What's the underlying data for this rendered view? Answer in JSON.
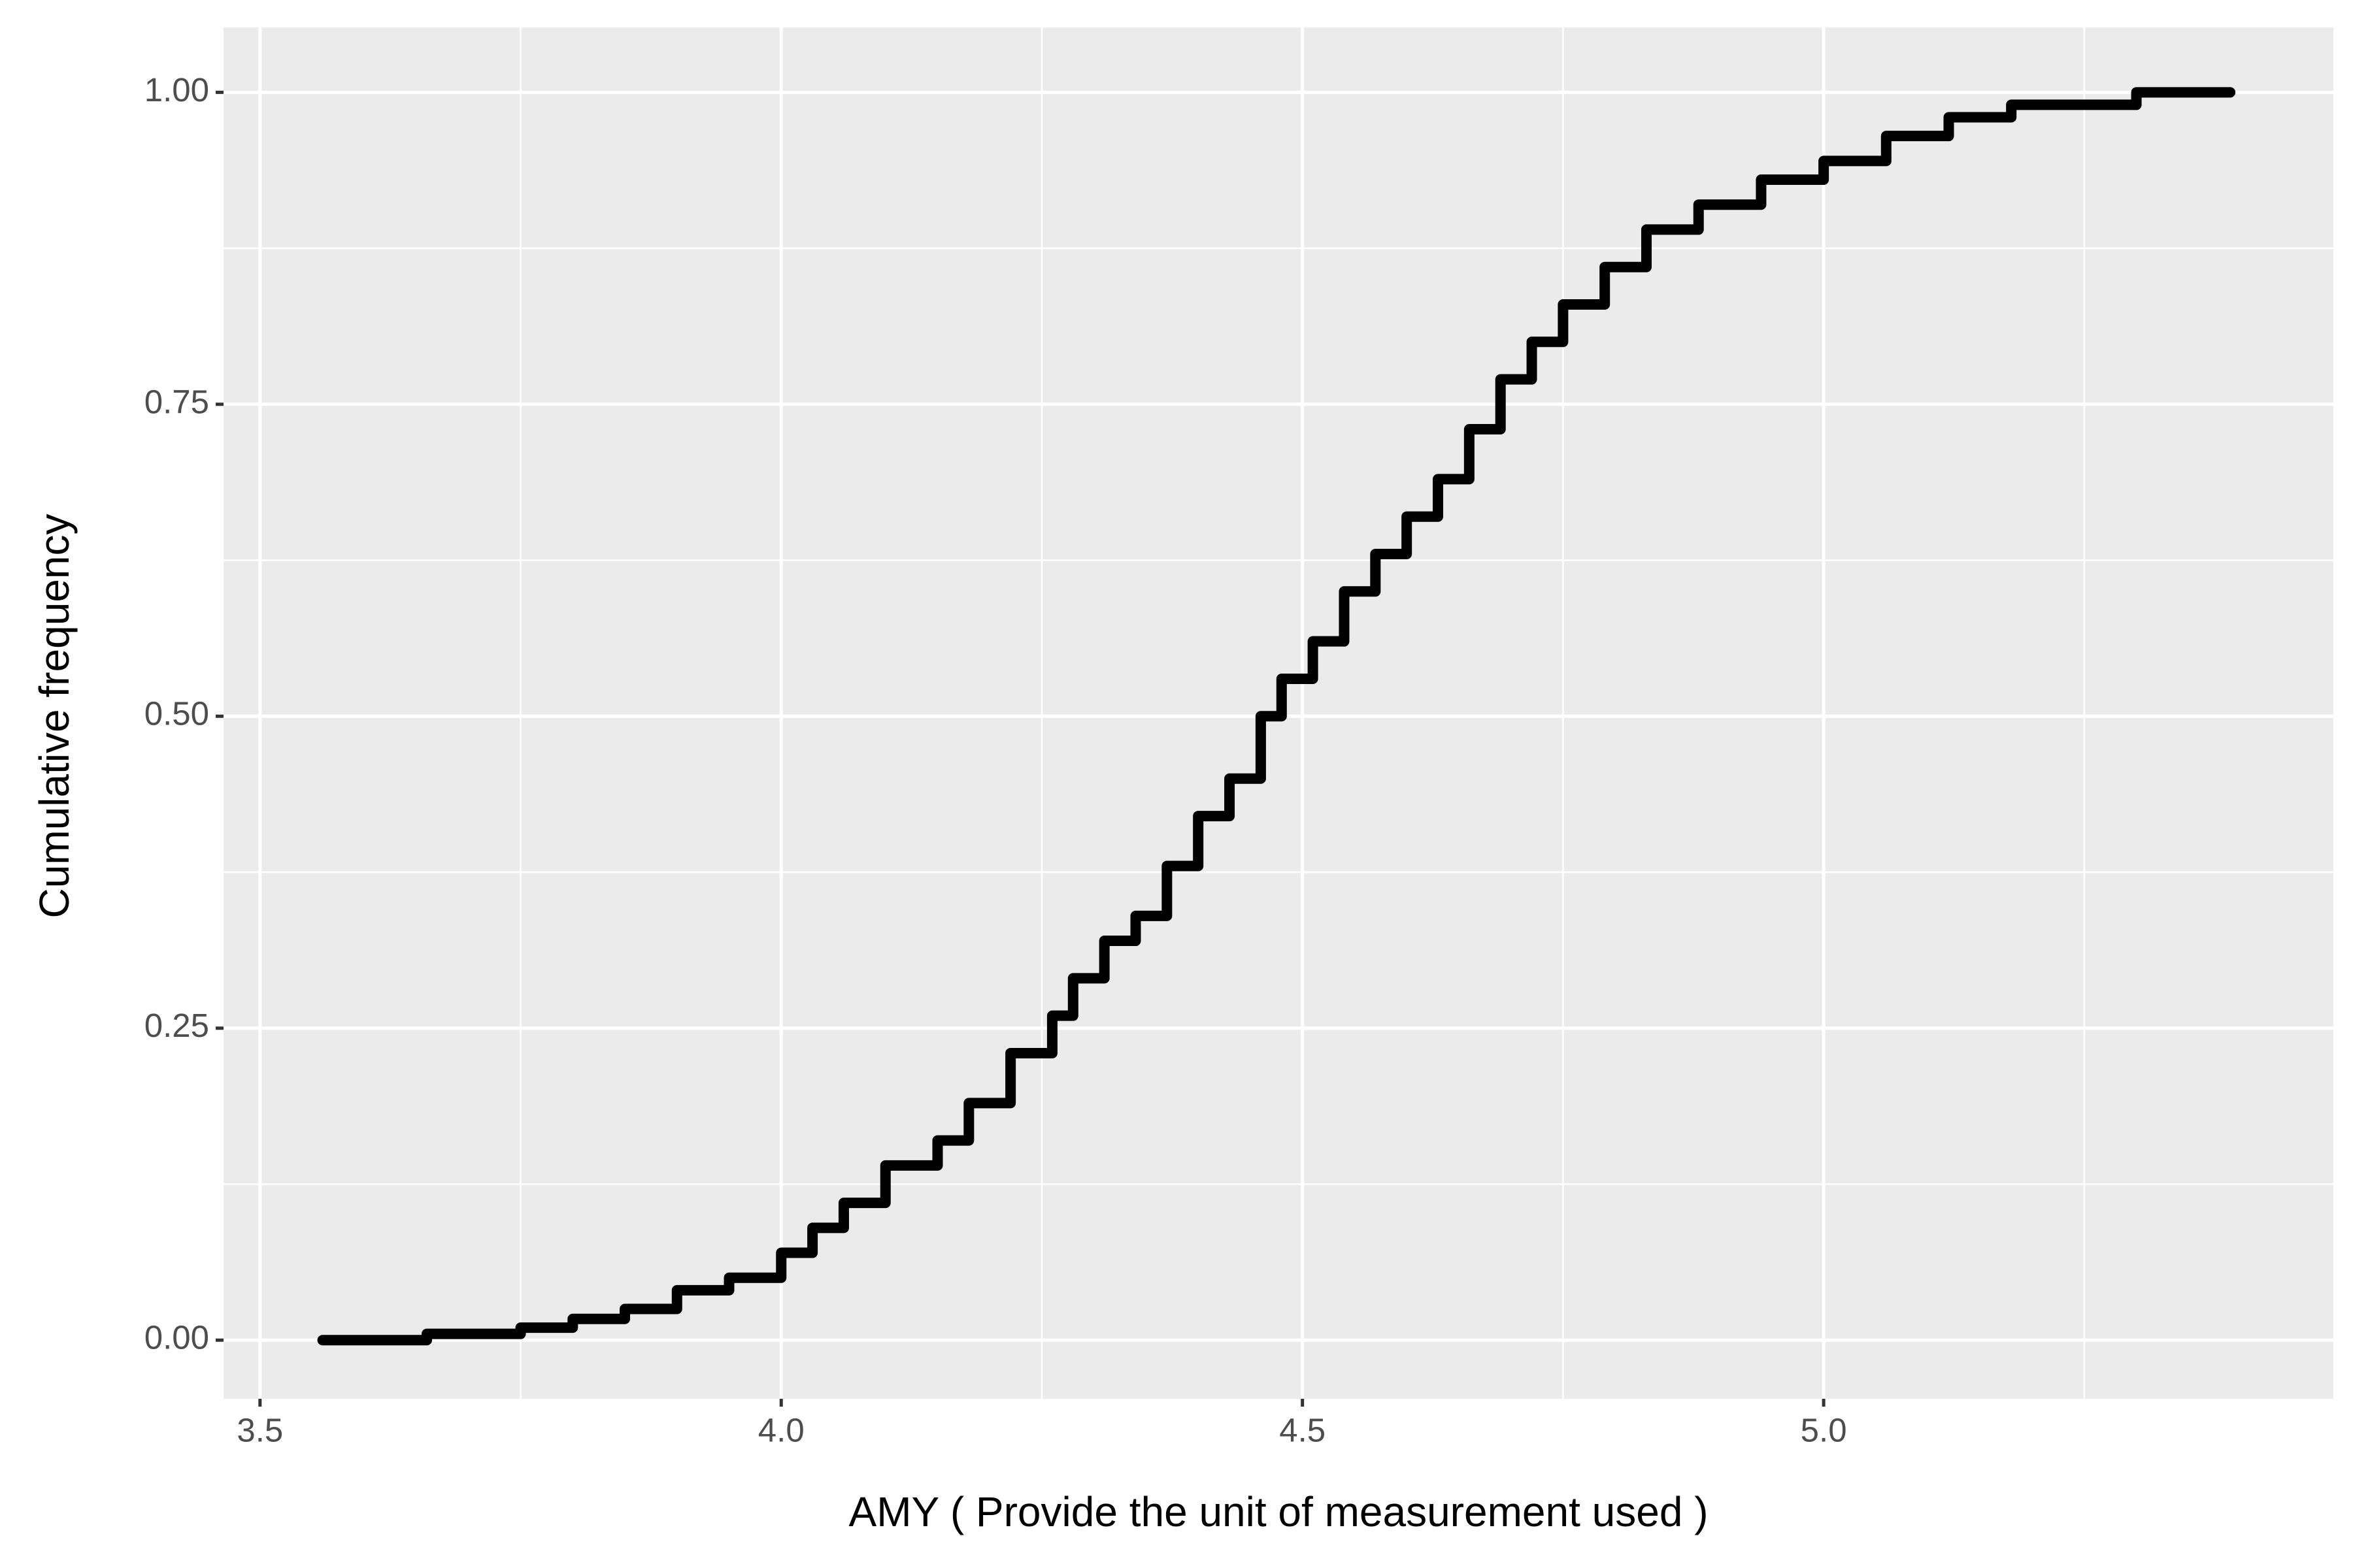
{
  "chart_data": {
    "type": "step",
    "x_label": "AMY ( Provide the unit of measurement used )",
    "y_label": "Cumulative frequency",
    "x": [
      3.56,
      3.66,
      3.75,
      3.8,
      3.85,
      3.9,
      3.95,
      4.0,
      4.03,
      4.06,
      4.1,
      4.15,
      4.18,
      4.22,
      4.26,
      4.28,
      4.31,
      4.34,
      4.37,
      4.4,
      4.43,
      4.46,
      4.48,
      4.51,
      4.54,
      4.57,
      4.6,
      4.63,
      4.66,
      4.69,
      4.72,
      4.75,
      4.79,
      4.83,
      4.88,
      4.94,
      5.0,
      5.06,
      5.12,
      5.18,
      5.3,
      5.39
    ],
    "values": [
      0.0,
      0.005,
      0.01,
      0.017,
      0.025,
      0.04,
      0.05,
      0.07,
      0.09,
      0.11,
      0.14,
      0.16,
      0.19,
      0.23,
      0.26,
      0.29,
      0.32,
      0.34,
      0.38,
      0.42,
      0.45,
      0.5,
      0.53,
      0.56,
      0.6,
      0.63,
      0.66,
      0.69,
      0.73,
      0.77,
      0.8,
      0.83,
      0.86,
      0.89,
      0.91,
      0.93,
      0.945,
      0.965,
      0.98,
      0.99,
      1.0,
      1.0
    ],
    "color": "#000000",
    "xlim": [
      3.465,
      5.489
    ],
    "ylim": [
      -0.047,
      1.052
    ],
    "xticks": [
      3.5,
      {
        "value": 4,
        "label": "4.0"
      },
      4.5,
      {
        "value": 5,
        "label": "5.0"
      }
    ],
    "yticks": [
      {
        "value": 0,
        "label": "0.00"
      },
      {
        "value": 0.25,
        "label": "0.25"
      },
      {
        "value": 0.5,
        "label": "0.50"
      },
      {
        "value": 0.75,
        "label": "0.75"
      },
      {
        "value": 1,
        "label": "1.00"
      }
    ],
    "grid": true
  }
}
